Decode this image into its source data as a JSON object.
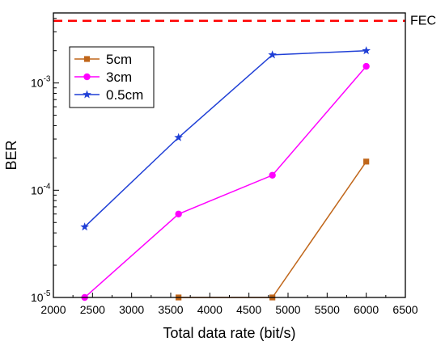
{
  "chart_data": {
    "type": "line",
    "xlabel": "Total data rate (bit/s)",
    "ylabel": "BER",
    "xlim": [
      2000,
      6500
    ],
    "ylim": [
      1e-05,
      0.0045
    ],
    "yscale": "log",
    "xticks": [
      2000,
      2500,
      3000,
      3500,
      4000,
      4500,
      5000,
      5500,
      6000,
      6500
    ],
    "yticks": [
      {
        "value": 1e-05,
        "base": "10",
        "exp": "-5"
      },
      {
        "value": 0.0001,
        "base": "10",
        "exp": "-4"
      },
      {
        "value": 0.001,
        "base": "10",
        "exp": "-3"
      }
    ],
    "grid": false,
    "legend_position": "top-left",
    "threshold": {
      "label": "FEC",
      "value": 0.0038,
      "color": "#ff0000",
      "style": "dashed"
    },
    "series": [
      {
        "name": "5cm",
        "color": "#c0661a",
        "marker": "square",
        "points": [
          [
            3600,
            1e-05
          ],
          [
            4800,
            1e-05
          ],
          [
            6000,
            0.000185
          ]
        ]
      },
      {
        "name": "3cm",
        "color": "#ff00ff",
        "marker": "circle",
        "points": [
          [
            2400,
            1e-05
          ],
          [
            3600,
            6e-05
          ],
          [
            4800,
            0.000138
          ],
          [
            6000,
            0.00143
          ]
        ]
      },
      {
        "name": "0.5cm",
        "color": "#1f3fd6",
        "marker": "star",
        "points": [
          [
            2400,
            4.55e-05
          ],
          [
            3600,
            0.00031
          ],
          [
            4800,
            0.00183
          ],
          [
            6000,
            0.002
          ]
        ]
      }
    ]
  }
}
